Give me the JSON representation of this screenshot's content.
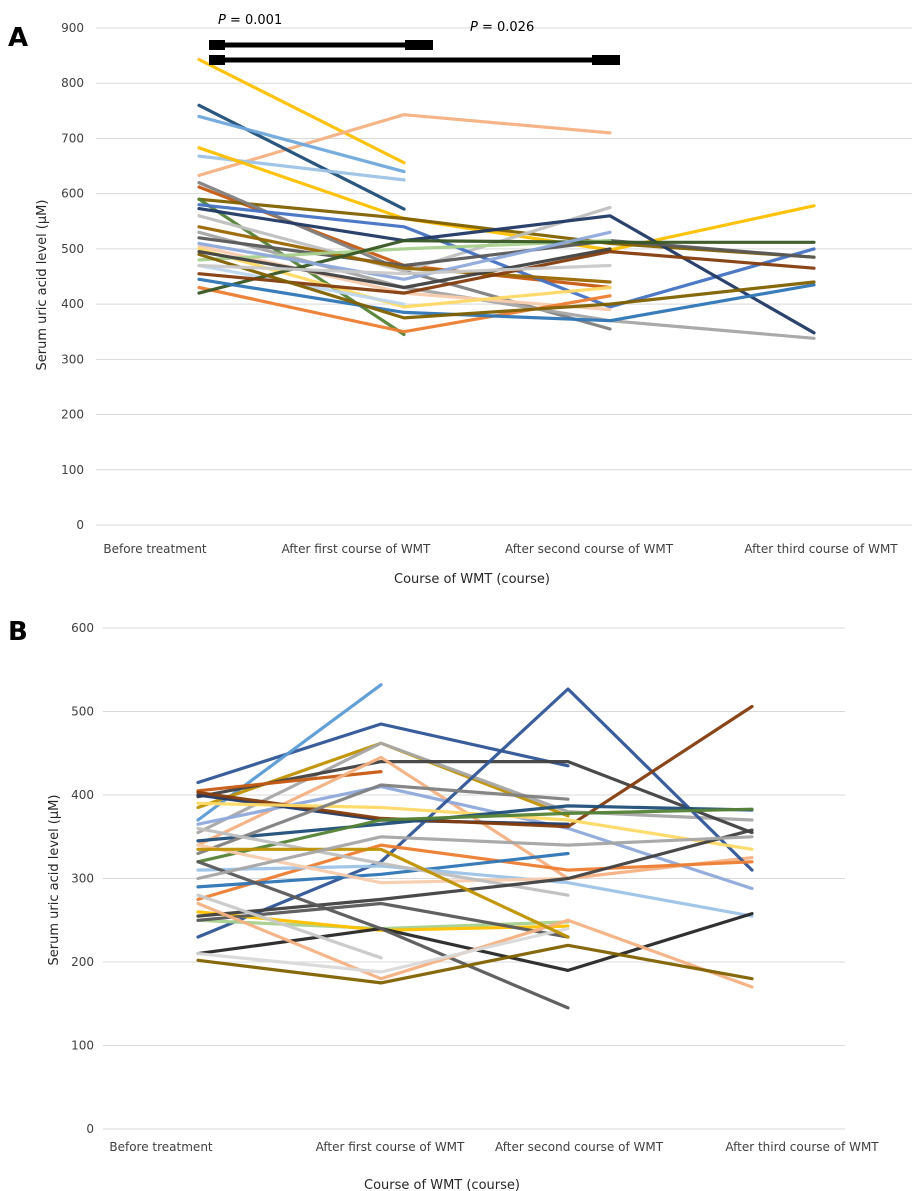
{
  "chart_data": [
    {
      "type": "line",
      "panel_label": "A",
      "xlabel": "Course of WMT (course)",
      "ylabel": "Serum uric acid level (μM)",
      "categories": [
        "Before treatment",
        "After first course of WMT",
        "After second course of WMT",
        "After third course of WMT"
      ],
      "ylim": [
        0,
        900
      ],
      "yticks": [
        0,
        100,
        200,
        300,
        400,
        500,
        600,
        700,
        800,
        900
      ],
      "grid": true,
      "annotations": [
        {
          "text": "P = 0.001",
          "italic_prefix": "P",
          "rest": " = 0.001",
          "from": 0,
          "to": 1
        },
        {
          "text": "P = 0.026",
          "italic_prefix": "P",
          "rest": " = 0.026",
          "from": 0,
          "to": 2
        }
      ],
      "series": [
        {
          "color": "#FFC000",
          "values": [
            843,
            656,
            null,
            null
          ]
        },
        {
          "color": "#F4B183",
          "values": [
            633,
            743,
            710,
            null
          ]
        },
        {
          "color": "#1F4E79",
          "values": [
            760,
            572,
            null,
            null
          ]
        },
        {
          "color": "#6FA8DC",
          "values": [
            740,
            640,
            null,
            null
          ]
        },
        {
          "color": "#9DC3E6",
          "values": [
            668,
            625,
            null,
            null
          ]
        },
        {
          "color": "#FFC000",
          "values": [
            683,
            555,
            498,
            578
          ]
        },
        {
          "color": "#C55A11",
          "values": [
            612,
            470,
            430,
            null
          ]
        },
        {
          "color": "#806000",
          "values": [
            590,
            555,
            510,
            485
          ]
        },
        {
          "color": "#7F7F7F",
          "values": [
            620,
            460,
            355,
            null
          ]
        },
        {
          "color": "#548235",
          "values": [
            590,
            345,
            null,
            null
          ]
        },
        {
          "color": "#BFBFBF",
          "values": [
            560,
            460,
            575,
            null
          ]
        },
        {
          "color": "#4472C4",
          "values": [
            580,
            540,
            395,
            500
          ]
        },
        {
          "color": "#203864",
          "values": [
            573,
            515,
            560,
            348
          ]
        },
        {
          "color": "#A5A5A5",
          "values": [
            530,
            430,
            370,
            338
          ]
        },
        {
          "color": "#595959",
          "values": [
            520,
            470,
            515,
            485
          ]
        },
        {
          "color": "#996600",
          "values": [
            540,
            465,
            440,
            null
          ]
        },
        {
          "color": "#F8CBAD",
          "values": [
            505,
            420,
            390,
            null
          ]
        },
        {
          "color": "#FFD966",
          "values": [
            500,
            395,
            430,
            null
          ]
        },
        {
          "color": "#A9D18E",
          "values": [
            480,
            500,
            515,
            null
          ]
        },
        {
          "color": "#BDD7EE",
          "values": [
            470,
            400,
            null,
            null
          ]
        },
        {
          "color": "#ED7D31",
          "values": [
            430,
            350,
            415,
            null
          ]
        },
        {
          "color": "#375623",
          "values": [
            420,
            515,
            512,
            512
          ]
        },
        {
          "color": "#2E75B6",
          "values": [
            445,
            385,
            370,
            435
          ]
        },
        {
          "color": "#843C0C",
          "values": [
            455,
            420,
            495,
            465
          ]
        },
        {
          "color": "#7F6000",
          "values": [
            490,
            375,
            400,
            440
          ]
        },
        {
          "color": "#8EA9DB",
          "values": [
            510,
            445,
            530,
            null
          ]
        },
        {
          "color": "#404040",
          "values": [
            495,
            430,
            500,
            null
          ]
        },
        {
          "color": "#C9C9C9",
          "values": [
            470,
            455,
            470,
            null
          ]
        }
      ]
    },
    {
      "type": "line",
      "panel_label": "B",
      "xlabel": "Course of WMT (course)",
      "ylabel": "Serum uric acid level (μM)",
      "categories": [
        "Before treatment",
        "After first course of WMT",
        "After second course of WMT",
        "After third course of WMT"
      ],
      "ylim": [
        0,
        600
      ],
      "yticks": [
        0,
        100,
        200,
        300,
        400,
        500,
        600
      ],
      "grid": true,
      "series": [
        {
          "color": "#2F5597",
          "values": [
            415,
            485,
            435,
            null
          ]
        },
        {
          "color": "#5B9BD5",
          "values": [
            370,
            532,
            null,
            null
          ]
        },
        {
          "color": "#BF9000",
          "values": [
            385,
            462,
            375,
            null
          ]
        },
        {
          "color": "#A6A6A6",
          "values": [
            355,
            462,
            380,
            370
          ]
        },
        {
          "color": "#404040",
          "values": [
            398,
            440,
            440,
            355
          ]
        },
        {
          "color": "#C55A11",
          "values": [
            405,
            428,
            null,
            null
          ]
        },
        {
          "color": "#F4B183",
          "values": [
            340,
            445,
            300,
            325
          ]
        },
        {
          "color": "#8EA9DB",
          "values": [
            365,
            410,
            360,
            288
          ]
        },
        {
          "color": "#203864",
          "values": [
            400,
            370,
            365,
            null
          ]
        },
        {
          "color": "#2F5597",
          "values": [
            230,
            320,
            527,
            310
          ]
        },
        {
          "color": "#843C0C",
          "values": [
            403,
            372,
            362,
            506
          ]
        },
        {
          "color": "#FFD966",
          "values": [
            390,
            385,
            370,
            335
          ]
        },
        {
          "color": "#1F4E79",
          "values": [
            345,
            365,
            387,
            382
          ]
        },
        {
          "color": "#548235",
          "values": [
            320,
            370,
            378,
            383
          ]
        },
        {
          "color": "#7F7F7F",
          "values": [
            330,
            412,
            395,
            null
          ]
        },
        {
          "color": "#ED7D31",
          "values": [
            275,
            340,
            310,
            320
          ]
        },
        {
          "color": "#2E75B6",
          "values": [
            290,
            305,
            330,
            null
          ]
        },
        {
          "color": "#9DC3E6",
          "values": [
            310,
            315,
            295,
            255
          ]
        },
        {
          "color": "#F8CBAD",
          "values": [
            340,
            295,
            300,
            null
          ]
        },
        {
          "color": "#BFBFBF",
          "values": [
            360,
            318,
            280,
            null
          ]
        },
        {
          "color": "#A9D18E",
          "values": [
            250,
            240,
            248,
            null
          ]
        },
        {
          "color": "#FFC000",
          "values": [
            260,
            238,
            243,
            null
          ]
        },
        {
          "color": "#595959",
          "values": [
            250,
            270,
            230,
            null
          ]
        },
        {
          "color": "#404040",
          "values": [
            255,
            275,
            300,
            358
          ]
        },
        {
          "color": "#262626",
          "values": [
            210,
            240,
            190,
            258
          ]
        },
        {
          "color": "#595959",
          "values": [
            320,
            240,
            145,
            null
          ]
        },
        {
          "color": "#F4B183",
          "values": [
            270,
            180,
            250,
            170
          ]
        },
        {
          "color": "#D9D9D9",
          "values": [
            210,
            188,
            240,
            null
          ]
        },
        {
          "color": "#C9C9C9",
          "values": [
            280,
            205,
            null,
            null
          ]
        },
        {
          "color": "#7F6000",
          "values": [
            202,
            175,
            220,
            180
          ]
        },
        {
          "color": "#BF9000",
          "values": [
            335,
            335,
            230,
            null
          ]
        },
        {
          "color": "#A5A5A5",
          "values": [
            300,
            350,
            340,
            350
          ]
        }
      ]
    }
  ]
}
